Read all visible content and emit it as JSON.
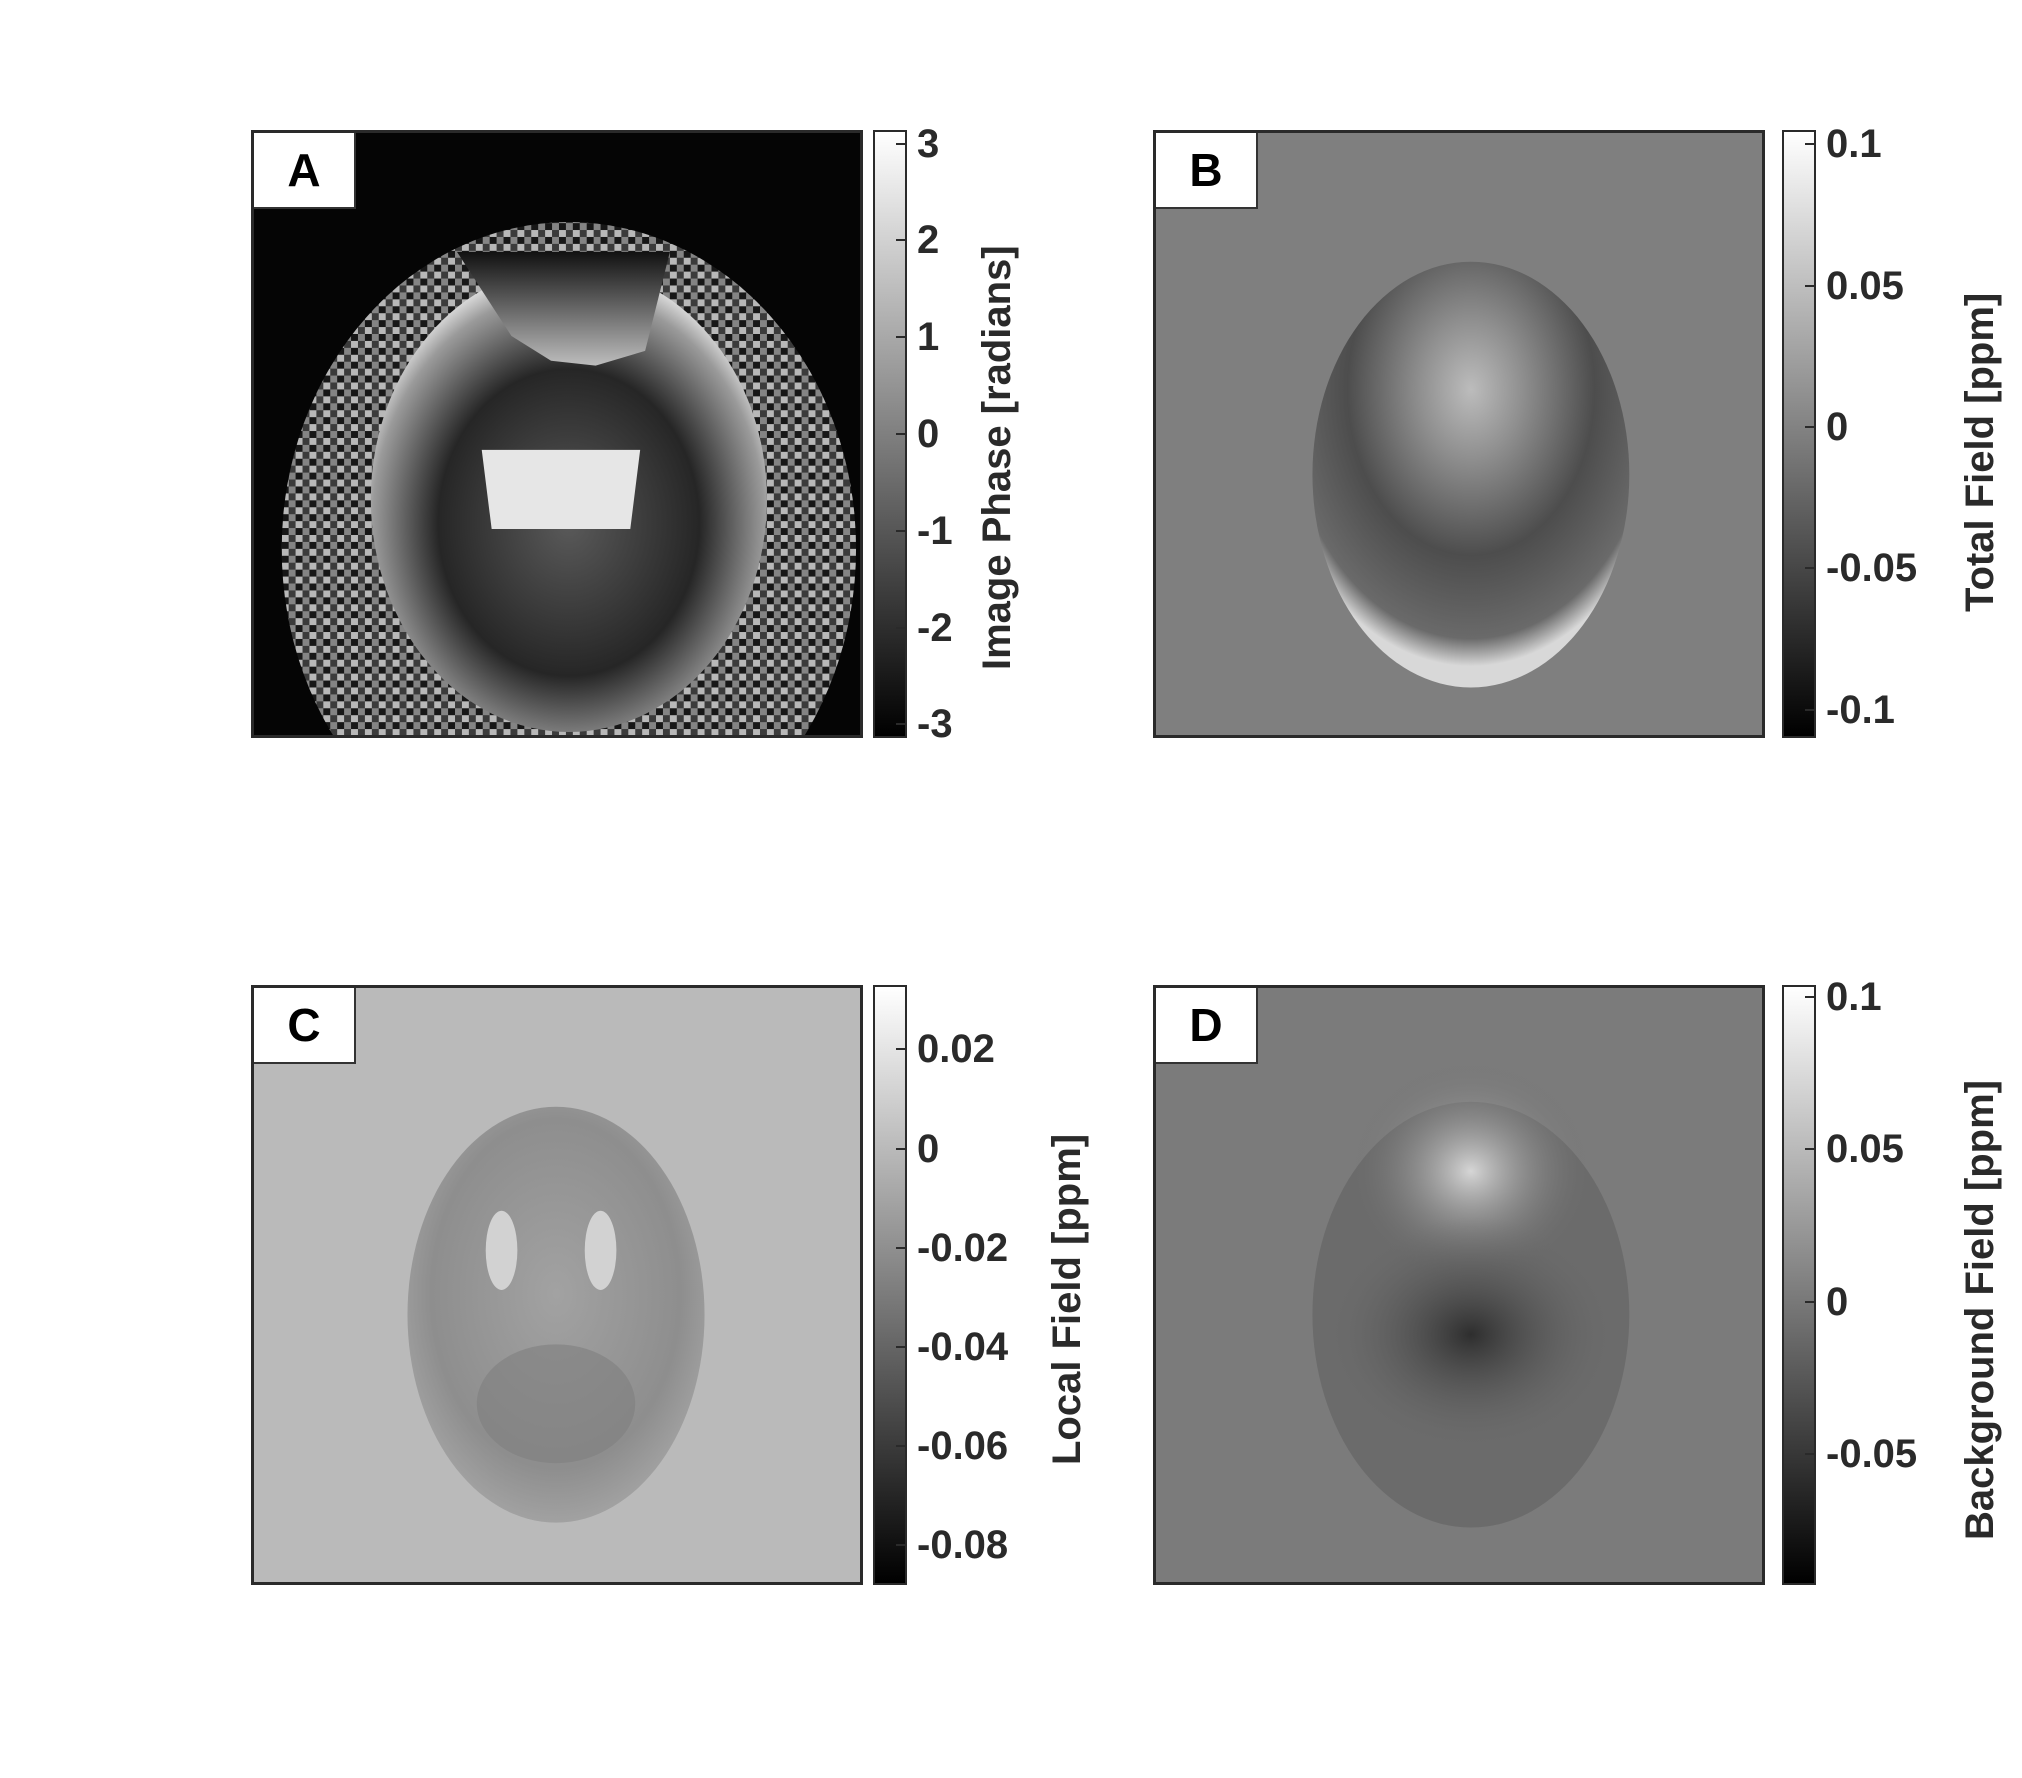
{
  "panels": [
    {
      "id": "A",
      "letter": "A",
      "colorbar_label": "Image Phase [radians]",
      "ticks": [
        "3",
        "2",
        "1",
        "0",
        "-1",
        "-2",
        "-3"
      ],
      "tick_values": [
        3,
        2,
        1,
        0,
        -1,
        -2,
        -3
      ],
      "range": [
        -3.14,
        3.14
      ],
      "background_gray": "#050505"
    },
    {
      "id": "B",
      "letter": "B",
      "colorbar_label": "Total Field [ppm]",
      "ticks": [
        "0.1",
        "0.05",
        "0",
        "-0.05",
        "-0.1"
      ],
      "tick_values": [
        0.1,
        0.05,
        0,
        -0.05,
        -0.1
      ],
      "range": [
        -0.11,
        0.105
      ],
      "background_gray": "#7f7f7f"
    },
    {
      "id": "C",
      "letter": "C",
      "colorbar_label": "Local Field [ppm]",
      "ticks": [
        "0.02",
        "0",
        "-0.02",
        "-0.04",
        "-0.06",
        "-0.08"
      ],
      "tick_values": [
        0.02,
        0,
        -0.02,
        -0.04,
        -0.06,
        -0.08
      ],
      "range": [
        -0.088,
        0.033
      ],
      "background_gray": "#bababa"
    },
    {
      "id": "D",
      "letter": "D",
      "colorbar_label": "Background Field [ppm]",
      "ticks": [
        "0.1",
        "0.05",
        "0",
        "-0.05"
      ],
      "tick_values": [
        0.1,
        0.05,
        0,
        -0.05
      ],
      "range": [
        -0.093,
        0.104
      ],
      "background_gray": "#7b7b7b"
    }
  ]
}
